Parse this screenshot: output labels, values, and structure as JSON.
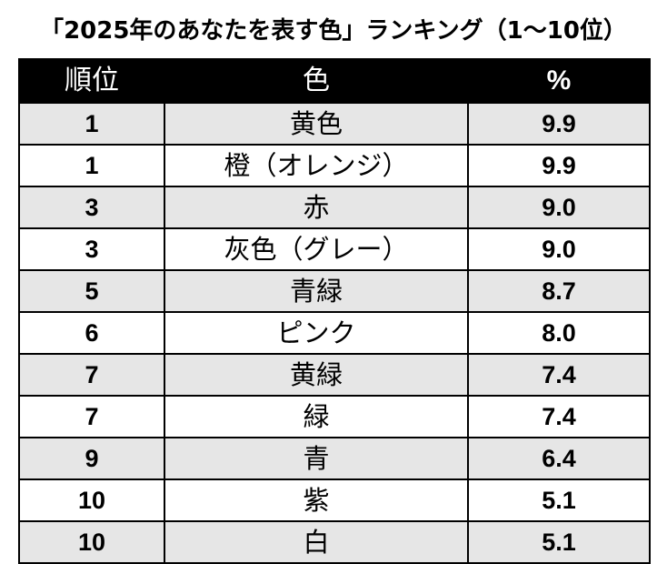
{
  "title": "「2025年のあなたを表す色」ランキング（1〜10位）",
  "header": {
    "rank": "順位",
    "color": "色",
    "percent": "%"
  },
  "rows": [
    {
      "rank": "1",
      "color": "黄色",
      "percent": "9.9"
    },
    {
      "rank": "1",
      "color": "橙（オレンジ）",
      "percent": "9.9"
    },
    {
      "rank": "3",
      "color": "赤",
      "percent": "9.0"
    },
    {
      "rank": "3",
      "color": "灰色（グレー）",
      "percent": "9.0"
    },
    {
      "rank": "5",
      "color": "青緑",
      "percent": "8.7"
    },
    {
      "rank": "6",
      "color": "ピンク",
      "percent": "8.0"
    },
    {
      "rank": "7",
      "color": "黄緑",
      "percent": "7.4"
    },
    {
      "rank": "7",
      "color": "緑",
      "percent": "7.4"
    },
    {
      "rank": "9",
      "color": "青",
      "percent": "6.4"
    },
    {
      "rank": "10",
      "color": "紫",
      "percent": "5.1"
    },
    {
      "rank": "10",
      "color": "白",
      "percent": "5.1"
    }
  ],
  "colors": {
    "header_bg": "#000000",
    "header_text": "#ffffff",
    "row_shaded": "#e6e6e6",
    "row_plain": "#ffffff"
  }
}
